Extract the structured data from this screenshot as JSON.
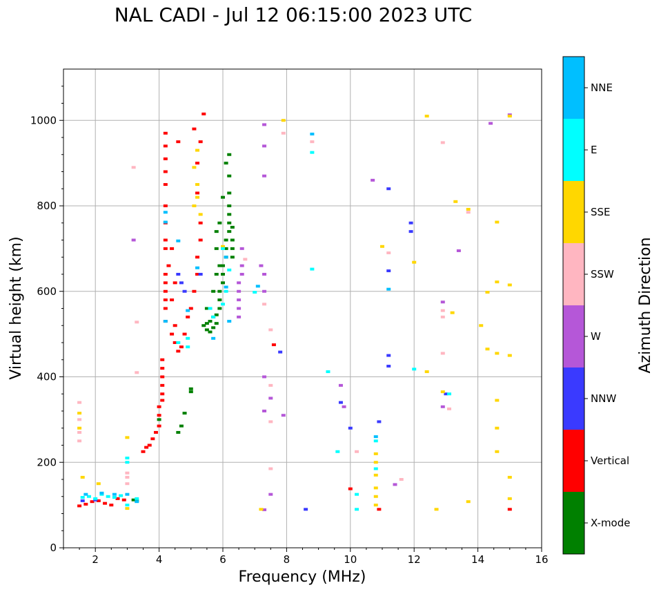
{
  "chart_data": {
    "type": "scatter",
    "title": "NAL CADI - Jul 12 06:15:00 2023 UTC",
    "xlabel": "Frequency (MHz)",
    "ylabel": "Virtual height (km)",
    "xlim": [
      1,
      16
    ],
    "ylim": [
      0,
      1120
    ],
    "xticks": [
      2,
      4,
      6,
      8,
      10,
      12,
      14,
      16
    ],
    "yticks": [
      0,
      200,
      400,
      600,
      800,
      1000
    ],
    "grid": true,
    "colorbar": {
      "title": "Azimuth Direction",
      "categories": [
        {
          "label": "X-mode",
          "color": "#008000"
        },
        {
          "label": "Vertical",
          "color": "#ff0000"
        },
        {
          "label": "NNW",
          "color": "#3a3aff"
        },
        {
          "label": "W",
          "color": "#b557d8"
        },
        {
          "label": "SSW",
          "color": "#ffb6c1"
        },
        {
          "label": "SSE",
          "color": "#ffd700"
        },
        {
          "label": "E",
          "color": "#00ffff"
        },
        {
          "label": "NNE",
          "color": "#00bfff"
        }
      ]
    },
    "series": [
      {
        "name": "X-mode",
        "color": "#008000",
        "points": [
          [
            3.2,
            112
          ],
          [
            3.3,
            110
          ],
          [
            4.0,
            300
          ],
          [
            4.6,
            270
          ],
          [
            4.7,
            285
          ],
          [
            4.8,
            315
          ],
          [
            5.0,
            365
          ],
          [
            5.0,
            372
          ],
          [
            5.4,
            520
          ],
          [
            5.5,
            510
          ],
          [
            5.5,
            525
          ],
          [
            5.6,
            505
          ],
          [
            5.6,
            530
          ],
          [
            5.7,
            515
          ],
          [
            5.7,
            540
          ],
          [
            5.8,
            525
          ],
          [
            5.8,
            545
          ],
          [
            5.9,
            560
          ],
          [
            5.9,
            580
          ],
          [
            5.9,
            600
          ],
          [
            6.0,
            620
          ],
          [
            6.0,
            640
          ],
          [
            6.0,
            660
          ],
          [
            6.1,
            680
          ],
          [
            6.1,
            700
          ],
          [
            6.1,
            720
          ],
          [
            6.2,
            740
          ],
          [
            6.2,
            760
          ],
          [
            6.2,
            780
          ],
          [
            6.2,
            800
          ],
          [
            6.2,
            830
          ],
          [
            6.2,
            870
          ],
          [
            6.2,
            920
          ],
          [
            6.3,
            680
          ],
          [
            6.3,
            700
          ],
          [
            6.3,
            720
          ],
          [
            6.3,
            750
          ],
          [
            5.8,
            700
          ],
          [
            5.8,
            740
          ],
          [
            5.9,
            660
          ],
          [
            6.0,
            820
          ],
          [
            6.1,
            900
          ],
          [
            5.6,
            560
          ],
          [
            5.5,
            560
          ],
          [
            5.7,
            600
          ],
          [
            5.8,
            640
          ],
          [
            5.9,
            760
          ]
        ]
      },
      {
        "name": "Vertical",
        "color": "#ff0000",
        "points": [
          [
            1.5,
            98
          ],
          [
            1.7,
            102
          ],
          [
            1.9,
            108
          ],
          [
            2.1,
            110
          ],
          [
            2.3,
            104
          ],
          [
            2.5,
            100
          ],
          [
            2.7,
            115
          ],
          [
            2.9,
            112
          ],
          [
            3.5,
            225
          ],
          [
            3.6,
            235
          ],
          [
            3.7,
            240
          ],
          [
            3.8,
            255
          ],
          [
            3.9,
            270
          ],
          [
            4.0,
            285
          ],
          [
            4.0,
            310
          ],
          [
            4.0,
            330
          ],
          [
            4.1,
            345
          ],
          [
            4.1,
            360
          ],
          [
            4.1,
            380
          ],
          [
            4.1,
            400
          ],
          [
            4.1,
            420
          ],
          [
            4.1,
            440
          ],
          [
            4.2,
            530
          ],
          [
            4.2,
            560
          ],
          [
            4.2,
            580
          ],
          [
            4.2,
            600
          ],
          [
            4.2,
            620
          ],
          [
            4.2,
            640
          ],
          [
            4.2,
            700
          ],
          [
            4.2,
            720
          ],
          [
            4.2,
            760
          ],
          [
            4.2,
            800
          ],
          [
            4.2,
            850
          ],
          [
            4.2,
            880
          ],
          [
            4.2,
            910
          ],
          [
            4.2,
            940
          ],
          [
            4.2,
            970
          ],
          [
            4.4,
            500
          ],
          [
            4.5,
            480
          ],
          [
            4.5,
            520
          ],
          [
            4.6,
            460
          ],
          [
            4.7,
            470
          ],
          [
            4.8,
            500
          ],
          [
            4.9,
            540
          ],
          [
            5.0,
            560
          ],
          [
            5.1,
            600
          ],
          [
            5.2,
            640
          ],
          [
            5.2,
            680
          ],
          [
            5.3,
            720
          ],
          [
            5.3,
            760
          ],
          [
            5.2,
            830
          ],
          [
            5.2,
            900
          ],
          [
            5.3,
            950
          ],
          [
            4.6,
            950
          ],
          [
            5.1,
            980
          ],
          [
            5.4,
            1015
          ],
          [
            4.4,
            580
          ],
          [
            4.5,
            620
          ],
          [
            4.3,
            660
          ],
          [
            4.4,
            700
          ],
          [
            7.6,
            475
          ],
          [
            10.0,
            138
          ],
          [
            10.9,
            90
          ],
          [
            15.0,
            90
          ]
        ]
      },
      {
        "name": "NNW",
        "color": "#3a3aff",
        "points": [
          [
            1.6,
            110
          ],
          [
            2.0,
            112
          ],
          [
            4.7,
            620
          ],
          [
            4.8,
            600
          ],
          [
            4.6,
            640
          ],
          [
            5.3,
            640
          ],
          [
            7.8,
            458
          ],
          [
            8.6,
            90
          ],
          [
            9.7,
            340
          ],
          [
            10.0,
            280
          ],
          [
            10.9,
            295
          ],
          [
            11.2,
            840
          ],
          [
            11.2,
            648
          ],
          [
            11.2,
            450
          ],
          [
            11.2,
            425
          ],
          [
            11.9,
            760
          ],
          [
            11.9,
            740
          ],
          [
            13.0,
            360
          ]
        ]
      },
      {
        "name": "W",
        "color": "#b557d8",
        "points": [
          [
            6.5,
            540
          ],
          [
            6.5,
            560
          ],
          [
            6.5,
            580
          ],
          [
            6.5,
            600
          ],
          [
            6.5,
            620
          ],
          [
            6.6,
            640
          ],
          [
            6.6,
            660
          ],
          [
            6.6,
            700
          ],
          [
            7.3,
            990
          ],
          [
            7.3,
            940
          ],
          [
            7.3,
            870
          ],
          [
            7.2,
            660
          ],
          [
            7.3,
            640
          ],
          [
            7.3,
            600
          ],
          [
            7.3,
            400
          ],
          [
            7.3,
            320
          ],
          [
            7.5,
            350
          ],
          [
            7.5,
            125
          ],
          [
            7.9,
            310
          ],
          [
            9.7,
            380
          ],
          [
            9.8,
            330
          ],
          [
            10.7,
            860
          ],
          [
            11.4,
            148
          ],
          [
            13.4,
            695
          ],
          [
            14.4,
            993
          ],
          [
            15.0,
            1013
          ],
          [
            12.9,
            575
          ],
          [
            12.9,
            330
          ],
          [
            3.2,
            720
          ],
          [
            7.3,
            89
          ]
        ]
      },
      {
        "name": "SSW",
        "color": "#ffb6c1",
        "points": [
          [
            1.5,
            250
          ],
          [
            1.5,
            270
          ],
          [
            1.5,
            300
          ],
          [
            1.5,
            340
          ],
          [
            3.0,
            150
          ],
          [
            3.0,
            165
          ],
          [
            3.0,
            175
          ],
          [
            3.3,
            528
          ],
          [
            3.3,
            410
          ],
          [
            3.2,
            890
          ],
          [
            6.7,
            675
          ],
          [
            7.3,
            570
          ],
          [
            7.5,
            510
          ],
          [
            7.5,
            380
          ],
          [
            7.5,
            295
          ],
          [
            7.5,
            185
          ],
          [
            7.9,
            970
          ],
          [
            8.8,
            950
          ],
          [
            10.2,
            225
          ],
          [
            11.2,
            690
          ],
          [
            11.6,
            160
          ],
          [
            12.9,
            948
          ],
          [
            12.9,
            555
          ],
          [
            12.9,
            540
          ],
          [
            13.1,
            325
          ],
          [
            13.7,
            785
          ],
          [
            12.9,
            455
          ]
        ]
      },
      {
        "name": "SSE",
        "color": "#ffd700",
        "points": [
          [
            1.5,
            280
          ],
          [
            1.5,
            315
          ],
          [
            1.6,
            165
          ],
          [
            2.1,
            150
          ],
          [
            3.0,
            258
          ],
          [
            3.0,
            92
          ],
          [
            5.1,
            890
          ],
          [
            5.2,
            930
          ],
          [
            5.2,
            850
          ],
          [
            5.2,
            820
          ],
          [
            5.1,
            800
          ],
          [
            5.3,
            780
          ],
          [
            6.0,
            705
          ],
          [
            7.2,
            90
          ],
          [
            7.9,
            1000
          ],
          [
            10.8,
            100
          ],
          [
            10.8,
            120
          ],
          [
            10.8,
            140
          ],
          [
            10.8,
            170
          ],
          [
            10.8,
            200
          ],
          [
            10.8,
            220
          ],
          [
            11.0,
            705
          ],
          [
            12.0,
            668
          ],
          [
            12.4,
            1010
          ],
          [
            12.4,
            412
          ],
          [
            12.7,
            90
          ],
          [
            12.9,
            365
          ],
          [
            13.2,
            550
          ],
          [
            13.3,
            810
          ],
          [
            13.7,
            108
          ],
          [
            13.7,
            792
          ],
          [
            14.1,
            520
          ],
          [
            14.3,
            598
          ],
          [
            14.3,
            465
          ],
          [
            14.6,
            762
          ],
          [
            14.6,
            622
          ],
          [
            14.6,
            455
          ],
          [
            14.6,
            345
          ],
          [
            14.6,
            280
          ],
          [
            14.6,
            225
          ],
          [
            15.0,
            1010
          ],
          [
            15.0,
            615
          ],
          [
            15.0,
            450
          ],
          [
            15.0,
            165
          ],
          [
            15.0,
            115
          ]
        ]
      },
      {
        "name": "E",
        "color": "#00ffff",
        "points": [
          [
            1.6,
            118
          ],
          [
            1.8,
            120
          ],
          [
            2.0,
            115
          ],
          [
            2.2,
            125
          ],
          [
            2.4,
            120
          ],
          [
            2.6,
            118
          ],
          [
            2.8,
            122
          ],
          [
            3.0,
            200
          ],
          [
            3.0,
            210
          ],
          [
            3.0,
            100
          ],
          [
            3.3,
            115
          ],
          [
            4.6,
            480
          ],
          [
            4.9,
            470
          ],
          [
            4.9,
            490
          ],
          [
            5.6,
            560
          ],
          [
            5.7,
            540
          ],
          [
            6.0,
            570
          ],
          [
            6.1,
            600
          ],
          [
            6.2,
            650
          ],
          [
            6.0,
            700
          ],
          [
            7.0,
            598
          ],
          [
            8.8,
            925
          ],
          [
            8.8,
            652
          ],
          [
            9.3,
            412
          ],
          [
            9.6,
            225
          ],
          [
            10.2,
            125
          ],
          [
            10.2,
            90
          ],
          [
            10.8,
            185
          ],
          [
            10.8,
            250
          ],
          [
            12.0,
            418
          ],
          [
            13.1,
            360
          ]
        ]
      },
      {
        "name": "NNE",
        "color": "#00bfff",
        "points": [
          [
            1.7,
            125
          ],
          [
            2.2,
            128
          ],
          [
            2.6,
            125
          ],
          [
            3.0,
            125
          ],
          [
            3.3,
            108
          ],
          [
            4.2,
            785
          ],
          [
            4.2,
            762
          ],
          [
            4.2,
            530
          ],
          [
            4.6,
            718
          ],
          [
            4.9,
            555
          ],
          [
            5.2,
            655
          ],
          [
            5.7,
            490
          ],
          [
            6.1,
            610
          ],
          [
            6.2,
            530
          ],
          [
            6.1,
            680
          ],
          [
            7.1,
            612
          ],
          [
            8.8,
            968
          ],
          [
            10.8,
            260
          ],
          [
            11.2,
            605
          ]
        ]
      }
    ]
  }
}
